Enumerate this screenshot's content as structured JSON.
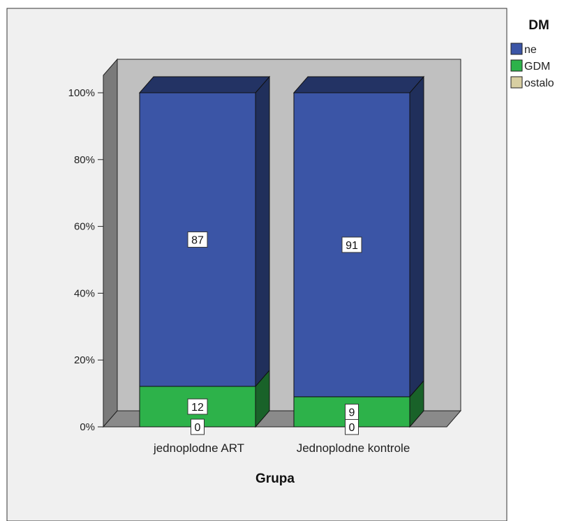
{
  "colors": {
    "ne": "#3B55A6",
    "GDM": "#2DB24A",
    "ostalo": "#D8CFA2",
    "plot_bg": "#F0F0F0",
    "wall": "#C0C0C0",
    "floor": "#8A8A8A"
  },
  "chart_data": {
    "type": "bar",
    "stacked": "percent",
    "xlabel": "Grupa",
    "ylabel": "",
    "ylim": [
      0,
      100
    ],
    "yticks": [
      "0%",
      "20%",
      "40%",
      "60%",
      "80%",
      "100%"
    ],
    "categories": [
      "jednoplodne ART",
      "Jednoplodne kontrole"
    ],
    "legend": {
      "title": "DM",
      "position": "top-right"
    },
    "series": [
      {
        "name": "ostalo",
        "values": [
          0,
          0
        ],
        "labels": [
          "0",
          "0"
        ]
      },
      {
        "name": "GDM",
        "values": [
          12,
          9
        ],
        "labels": [
          "12",
          "9"
        ]
      },
      {
        "name": "ne",
        "values": [
          87,
          91
        ],
        "labels": [
          "87",
          "91"
        ]
      }
    ]
  }
}
